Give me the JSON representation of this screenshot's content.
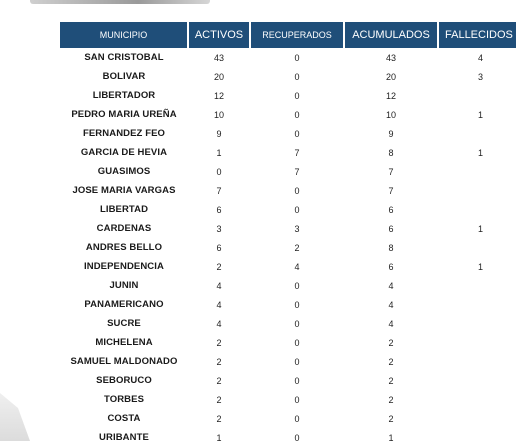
{
  "table": {
    "headers": [
      "MUNICIPIO",
      "ACTIVOS",
      "RECUPERADOS",
      "ACUMULADOS",
      "FALLECIDOS"
    ],
    "rows": [
      [
        "SAN CRISTOBAL",
        "43",
        "0",
        "43",
        "4"
      ],
      [
        "BOLIVAR",
        "20",
        "0",
        "20",
        "3"
      ],
      [
        "LIBERTADOR",
        "12",
        "0",
        "12",
        ""
      ],
      [
        "PEDRO MARIA UREÑA",
        "10",
        "0",
        "10",
        "1"
      ],
      [
        "FERNANDEZ FEO",
        "9",
        "0",
        "9",
        ""
      ],
      [
        "GARCIA DE HEVIA",
        "1",
        "7",
        "8",
        "1"
      ],
      [
        "GUASIMOS",
        "0",
        "7",
        "7",
        ""
      ],
      [
        "JOSE MARIA VARGAS",
        "7",
        "0",
        "7",
        ""
      ],
      [
        "LIBERTAD",
        "6",
        "0",
        "6",
        ""
      ],
      [
        "CARDENAS",
        "3",
        "3",
        "6",
        "1"
      ],
      [
        "ANDRES BELLO",
        "6",
        "2",
        "8",
        ""
      ],
      [
        "INDEPENDENCIA",
        "2",
        "4",
        "6",
        "1"
      ],
      [
        "JUNIN",
        "4",
        "0",
        "4",
        ""
      ],
      [
        "PANAMERICANO",
        "4",
        "0",
        "4",
        ""
      ],
      [
        "SUCRE",
        "4",
        "0",
        "4",
        ""
      ],
      [
        "MICHELENA",
        "2",
        "0",
        "2",
        ""
      ],
      [
        "SAMUEL MALDONADO",
        "2",
        "0",
        "2",
        ""
      ],
      [
        "SEBORUCO",
        "2",
        "0",
        "2",
        ""
      ],
      [
        "TORBES",
        "2",
        "0",
        "2",
        ""
      ],
      [
        "COSTA",
        "2",
        "0",
        "2",
        ""
      ],
      [
        "URIBANTE",
        "1",
        "0",
        "1",
        ""
      ]
    ]
  },
  "colors": {
    "header_bg": "#1f4e79",
    "header_text": "#ffffff"
  }
}
